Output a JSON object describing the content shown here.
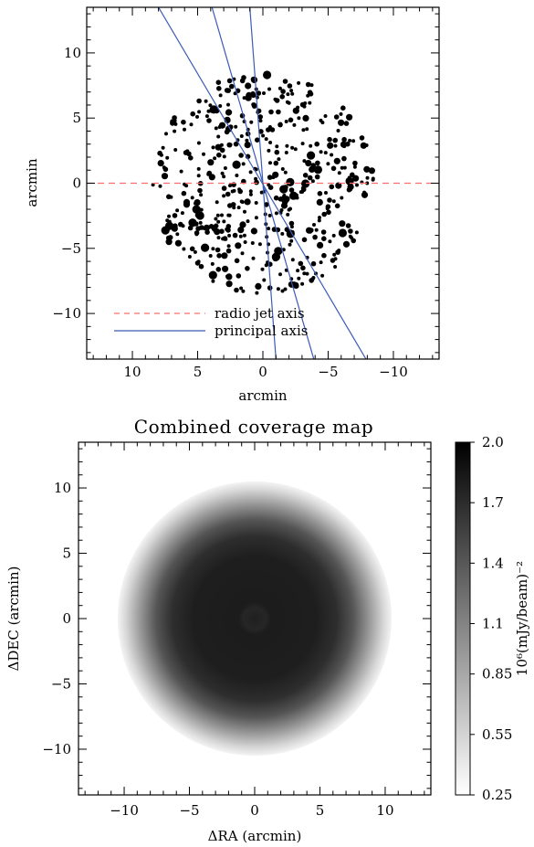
{
  "chart_data": [
    {
      "type": "scatter",
      "title": "",
      "xlabel": "arcmin",
      "ylabel": "arcmin",
      "xlim": [
        13.5,
        -13.5
      ],
      "ylim": [
        -13.5,
        13.5
      ],
      "x_ticks": [
        10,
        5,
        0,
        -5,
        -10
      ],
      "x_tick_labels": [
        "10",
        "5",
        "0",
        "−5",
        "−10"
      ],
      "y_ticks": [
        10,
        5,
        0,
        -5,
        -10
      ],
      "y_tick_labels": [
        "10",
        "5",
        "0",
        "−5",
        "−10"
      ],
      "scatter_extent_arcmin": 8.5,
      "series": [
        {
          "name": "radio jet axis",
          "kind": "line",
          "style": "dashed",
          "color": "#ff6b6b",
          "points": [
            [
              13.5,
              0
            ],
            [
              -13.5,
              0
            ]
          ]
        },
        {
          "name": "principal axis",
          "kind": "line",
          "style": "solid",
          "color": "#3b5bb5",
          "points": [
            [
              8.0,
              13.5
            ],
            [
              -7.9,
              -13.5
            ]
          ]
        },
        {
          "name": "principal axis",
          "kind": "line",
          "style": "solid",
          "color": "#3b5bb5",
          "points": [
            [
              3.9,
              13.5
            ],
            [
              -3.9,
              -13.5
            ]
          ]
        },
        {
          "name": "principal axis",
          "kind": "line",
          "style": "solid",
          "color": "#3b5bb5",
          "points": [
            [
              1.0,
              13.5
            ],
            [
              -1.0,
              -13.5
            ]
          ]
        }
      ],
      "legend": {
        "placement": "bottom-center",
        "entries": [
          {
            "label": "radio jet axis",
            "style": "dashed",
            "color": "#ff6b6b"
          },
          {
            "label": "principal axis",
            "style": "solid",
            "color": "#3b5bb5"
          }
        ]
      }
    },
    {
      "type": "heatmap",
      "title": "Combined coverage map",
      "xlabel": "ΔRA (arcmin)",
      "ylabel": "ΔDEC (arcmin)",
      "xlim": [
        -13.5,
        13.5
      ],
      "ylim": [
        -13.5,
        13.5
      ],
      "x_ticks": [
        -10,
        -5,
        0,
        5,
        10
      ],
      "x_tick_labels": [
        "−10",
        "−5",
        "0",
        "5",
        "10"
      ],
      "y_ticks": [
        10,
        5,
        0,
        -5,
        -10
      ],
      "y_tick_labels": [
        "10",
        "5",
        "0",
        "−5",
        "−10"
      ],
      "coverage_radius_arcmin": 10.5,
      "colorbar": {
        "label": "10⁶(mJy/beam)⁻²",
        "range": [
          0.25,
          2.0
        ],
        "ticks": [
          2.0,
          1.7,
          1.4,
          1.1,
          0.85,
          0.55,
          0.25
        ],
        "tick_labels": [
          "2.0",
          "1.7",
          "1.4",
          "1.1",
          "0.85",
          "0.55",
          "0.25"
        ]
      }
    }
  ]
}
